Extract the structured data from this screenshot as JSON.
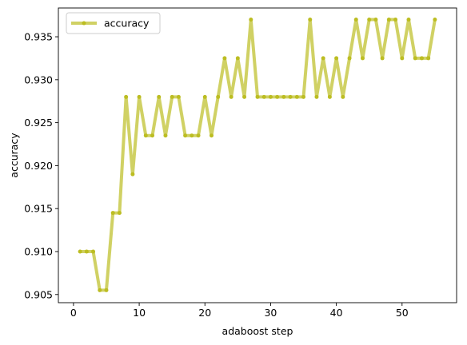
{
  "chart_data": {
    "type": "line",
    "title": "",
    "xlabel": "adaboost step",
    "ylabel": "accuracy",
    "xlim": [
      -2.3,
      58.3
    ],
    "ylim": [
      0.90405,
      0.93835
    ],
    "xticks": [
      0,
      10,
      20,
      30,
      40,
      50
    ],
    "yticks": [
      0.905,
      0.91,
      0.915,
      0.92,
      0.925,
      0.93,
      0.935
    ],
    "ytick_labels": [
      "0.905",
      "0.910",
      "0.915",
      "0.920",
      "0.925",
      "0.930",
      "0.935"
    ],
    "grid": false,
    "legend": {
      "position": "top-left",
      "entries": [
        "accuracy"
      ]
    },
    "series": [
      {
        "name": "accuracy",
        "color": "#bcbd22",
        "x": [
          1,
          2,
          3,
          4,
          5,
          6,
          7,
          8,
          9,
          10,
          11,
          12,
          13,
          14,
          15,
          16,
          17,
          18,
          19,
          20,
          21,
          22,
          23,
          24,
          25,
          26,
          27,
          28,
          29,
          30,
          31,
          32,
          33,
          34,
          35,
          36,
          37,
          38,
          39,
          40,
          41,
          42,
          43,
          44,
          45,
          46,
          47,
          48,
          49,
          50,
          51,
          52,
          53,
          54,
          55
        ],
        "values": [
          0.91,
          0.91,
          0.91,
          0.9055,
          0.9055,
          0.9145,
          0.9145,
          0.928,
          0.919,
          0.928,
          0.9235,
          0.9235,
          0.928,
          0.9235,
          0.928,
          0.928,
          0.9235,
          0.9235,
          0.9235,
          0.928,
          0.9235,
          0.928,
          0.9325,
          0.928,
          0.9325,
          0.928,
          0.937,
          0.928,
          0.928,
          0.928,
          0.928,
          0.928,
          0.928,
          0.928,
          0.928,
          0.937,
          0.928,
          0.9325,
          0.928,
          0.9325,
          0.928,
          0.9325,
          0.937,
          0.9325,
          0.937,
          0.937,
          0.9325,
          0.937,
          0.937,
          0.9325,
          0.937,
          0.9325,
          0.9325,
          0.9325,
          0.937
        ]
      }
    ]
  }
}
